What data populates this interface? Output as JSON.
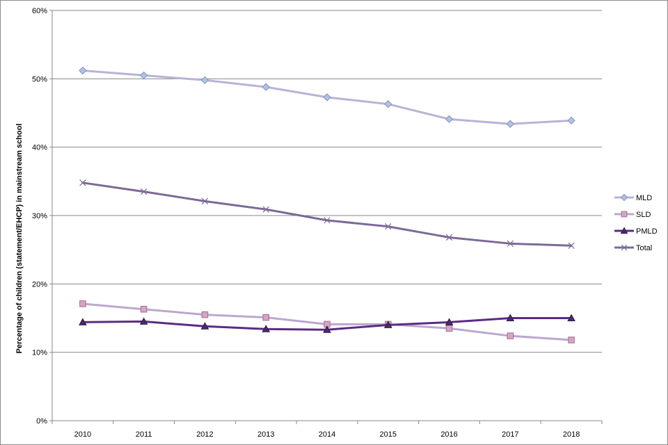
{
  "chart_data": {
    "type": "line",
    "title": "",
    "xlabel": "",
    "ylabel": "Percentage of children (statement/EHCP) in mainstream school",
    "categories": [
      "2010",
      "2011",
      "2012",
      "2013",
      "2014",
      "2015",
      "2016",
      "2017",
      "2018"
    ],
    "ylim": [
      0,
      60
    ],
    "yticks": [
      0,
      10,
      20,
      30,
      40,
      50,
      60
    ],
    "ytick_labels": [
      "0%",
      "10%",
      "20%",
      "30%",
      "40%",
      "50%",
      "60%"
    ],
    "grid": true,
    "legend_position": "right",
    "series": [
      {
        "name": "MLD",
        "color": "#b8b3d6",
        "marker": "diamond",
        "marker_fill": "#b4c2e0",
        "marker_stroke": "#7f93c3",
        "values": [
          51.2,
          50.5,
          49.8,
          48.8,
          47.3,
          46.3,
          44.1,
          43.4,
          43.9
        ]
      },
      {
        "name": "SLD",
        "color": "#b9a8cf",
        "marker": "square",
        "marker_fill": "#d7a5c4",
        "marker_stroke": "#a26b92",
        "values": [
          17.1,
          16.3,
          15.5,
          15.1,
          14.1,
          14.1,
          13.5,
          12.4,
          11.8
        ]
      },
      {
        "name": "PMLD",
        "color": "#5b2b84",
        "marker": "triangle",
        "marker_fill": "#4b2a6e",
        "marker_stroke": "#2f1a47",
        "values": [
          14.4,
          14.5,
          13.8,
          13.4,
          13.3,
          14.0,
          14.4,
          15.0,
          15.0
        ]
      },
      {
        "name": "Total",
        "color": "#7b6a98",
        "marker": "x",
        "marker_fill": "none",
        "marker_stroke": "#7b6a98",
        "values": [
          34.8,
          33.5,
          32.1,
          30.9,
          29.3,
          28.4,
          26.8,
          25.9,
          25.6
        ]
      }
    ]
  }
}
